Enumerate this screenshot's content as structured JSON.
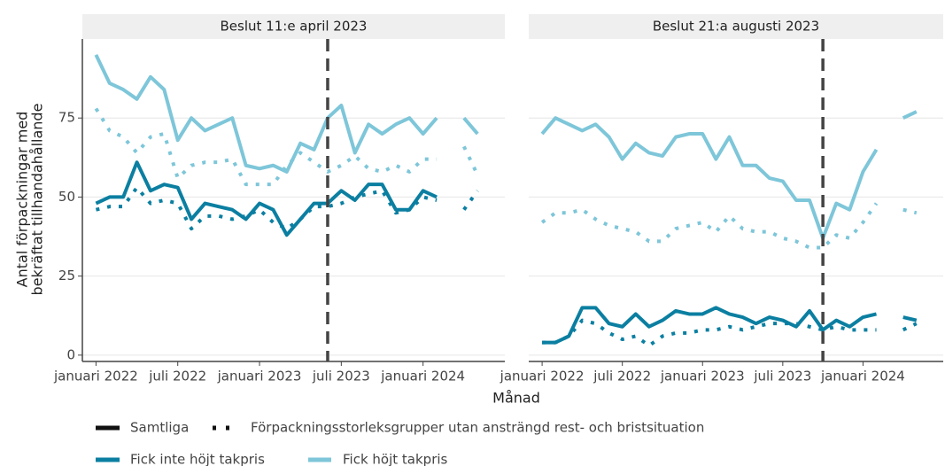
{
  "shared": {
    "xlabel": "Månad",
    "ylabel": [
      "Antal förpackningar med",
      "bekräftat tillhandahållande"
    ],
    "linetype_legend": [
      "Samtliga",
      "Förpackningsstorleksgrupper utan ansträngd rest- och bristsituation"
    ]
  },
  "chart_data": [
    {
      "type": "line",
      "title": "Beslut 11:e april 2023",
      "vline": "2023-06",
      "x": [
        "2022-01",
        "2022-02",
        "2022-03",
        "2022-04",
        "2022-05",
        "2022-06",
        "2022-07",
        "2022-08",
        "2022-09",
        "2022-10",
        "2022-11",
        "2022-12",
        "2023-01",
        "2023-02",
        "2023-03",
        "2023-04",
        "2023-05",
        "2023-06",
        "2023-07",
        "2023-08",
        "2023-09",
        "2023-10",
        "2023-11",
        "2023-12",
        "2024-01",
        "2024-02",
        "2024-03",
        "2024-04",
        "2024-05"
      ],
      "xlim": [
        "2021-12",
        "2024-07"
      ],
      "xticks": [
        {
          "value": "2022-01",
          "label": "januari 2022"
        },
        {
          "value": "2022-07",
          "label": "juli 2022"
        },
        {
          "value": "2023-01",
          "label": "januari 2023"
        },
        {
          "value": "2023-07",
          "label": "juli 2023"
        },
        {
          "value": "2024-01",
          "label": "januari 2024"
        }
      ],
      "ylim": [
        -2,
        100
      ],
      "yticks": [
        0,
        25,
        50,
        75
      ],
      "grid": true,
      "yaxis": true,
      "series": [
        {
          "name": "Fick inte höjt takpris",
          "color": "#0b7fa1",
          "style": "solid",
          "values": [
            48,
            50,
            50,
            61,
            52,
            54,
            53,
            43,
            48,
            47,
            46,
            43,
            48,
            46,
            38,
            43,
            48,
            48,
            52,
            49,
            54,
            54,
            46,
            46,
            52,
            50,
            null,
            null,
            null
          ]
        },
        {
          "name": "Fick höjt takpris",
          "color": "#7ec6d9",
          "style": "solid",
          "values": [
            95,
            86,
            84,
            81,
            88,
            84,
            68,
            75,
            71,
            73,
            75,
            60,
            59,
            60,
            58,
            67,
            65,
            75,
            79,
            64,
            73,
            70,
            73,
            75,
            70,
            75,
            null,
            75,
            70
          ]
        },
        {
          "name": "Fick inte höjt takpris",
          "color": "#0b7fa1",
          "style": "dotted",
          "values": [
            46,
            47,
            47,
            53,
            48,
            49,
            48,
            40,
            44,
            44,
            43,
            44,
            46,
            42,
            40,
            43,
            47,
            47,
            48,
            50,
            51,
            52,
            45,
            46,
            50,
            49,
            null,
            46,
            52
          ]
        },
        {
          "name": "Fick höjt takpris",
          "color": "#7ec6d9",
          "style": "dotted",
          "values": [
            78,
            71,
            69,
            64,
            69,
            70,
            56,
            60,
            61,
            61,
            62,
            54,
            54,
            54,
            60,
            64,
            61,
            58,
            60,
            63,
            59,
            58,
            60,
            58,
            62,
            62,
            null,
            66,
            57
          ]
        }
      ]
    },
    {
      "type": "line",
      "title": "Beslut 21:a augusti 2023",
      "vline": "2023-10",
      "x": [
        "2022-01",
        "2022-02",
        "2022-03",
        "2022-04",
        "2022-05",
        "2022-06",
        "2022-07",
        "2022-08",
        "2022-09",
        "2022-10",
        "2022-11",
        "2022-12",
        "2023-01",
        "2023-02",
        "2023-03",
        "2023-04",
        "2023-05",
        "2023-06",
        "2023-07",
        "2023-08",
        "2023-09",
        "2023-10",
        "2023-11",
        "2023-12",
        "2024-01",
        "2024-02",
        "2024-03",
        "2024-04",
        "2024-05"
      ],
      "xlim": [
        "2021-12",
        "2024-07"
      ],
      "xticks": [
        {
          "value": "2022-01",
          "label": "januari 2022"
        },
        {
          "value": "2022-07",
          "label": "juli 2022"
        },
        {
          "value": "2023-01",
          "label": "januari 2023"
        },
        {
          "value": "2023-07",
          "label": "juli 2023"
        },
        {
          "value": "2024-01",
          "label": "januari 2024"
        }
      ],
      "ylim": [
        -2,
        100
      ],
      "yticks": [
        0,
        25,
        50,
        75
      ],
      "grid": true,
      "yaxis": false,
      "series": [
        {
          "name": "Fick inte höjt takpris",
          "color": "#0b7fa1",
          "style": "solid",
          "values": [
            4,
            4,
            6,
            15,
            15,
            10,
            9,
            13,
            9,
            11,
            14,
            13,
            13,
            15,
            13,
            12,
            10,
            12,
            11,
            9,
            14,
            8,
            11,
            9,
            12,
            13,
            null,
            12,
            11
          ]
        },
        {
          "name": "Fick höjt takpris",
          "color": "#7ec6d9",
          "style": "solid",
          "values": [
            70,
            75,
            73,
            71,
            73,
            69,
            62,
            67,
            64,
            63,
            69,
            70,
            70,
            62,
            69,
            60,
            60,
            56,
            55,
            49,
            49,
            37,
            48,
            46,
            58,
            65,
            null,
            75,
            77
          ]
        },
        {
          "name": "Fick inte höjt takpris",
          "color": "#0b7fa1",
          "style": "dotted",
          "values": [
            4,
            4,
            6,
            11,
            10,
            7,
            5,
            6,
            3,
            6,
            7,
            7,
            8,
            8,
            9,
            8,
            9,
            10,
            10,
            10,
            9,
            8,
            9,
            8,
            8,
            8,
            null,
            8,
            10
          ]
        },
        {
          "name": "Fick höjt takpris",
          "color": "#7ec6d9",
          "style": "dotted",
          "values": [
            42,
            45,
            45,
            46,
            43,
            41,
            40,
            39,
            36,
            36,
            40,
            41,
            42,
            39,
            44,
            40,
            39,
            39,
            37,
            36,
            34,
            34,
            38,
            37,
            42,
            48,
            null,
            46,
            45
          ]
        }
      ]
    }
  ]
}
